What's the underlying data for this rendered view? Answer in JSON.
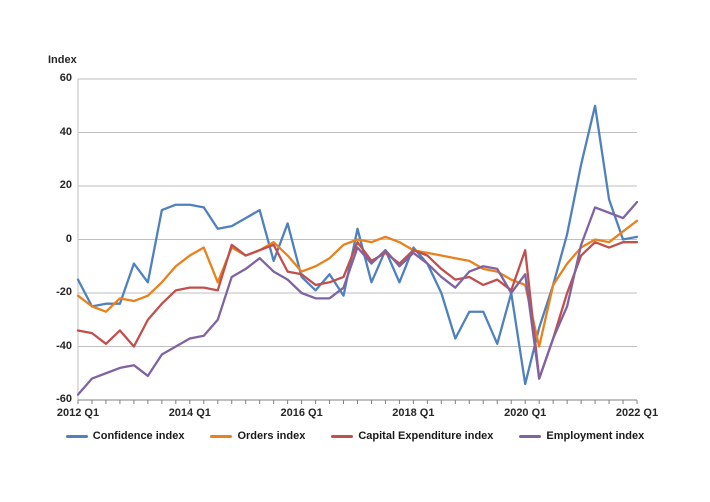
{
  "y_axis": {
    "title": "Index",
    "ticks": [
      "60",
      "40",
      "20",
      "0",
      "-20",
      "-40",
      "-60"
    ]
  },
  "x_axis": {
    "ticks": [
      "2012 Q1",
      "2014 Q1",
      "2016 Q1",
      "2018 Q1",
      "2020 Q1",
      "2022 Q1"
    ]
  },
  "colors": {
    "grid": "#BFBFBF",
    "axis": "#808080",
    "background": "#FFFFFF"
  },
  "chart_data": {
    "type": "line",
    "title": "",
    "ylabel": "Index",
    "xlabel": "",
    "ylim": [
      -60,
      60
    ],
    "grid": true,
    "legend_position": "bottom",
    "frequency": "quarterly",
    "categories": [
      "2012 Q1",
      "2012 Q2",
      "2012 Q3",
      "2012 Q4",
      "2013 Q1",
      "2013 Q2",
      "2013 Q3",
      "2013 Q4",
      "2014 Q1",
      "2014 Q2",
      "2014 Q3",
      "2014 Q4",
      "2015 Q1",
      "2015 Q2",
      "2015 Q3",
      "2015 Q4",
      "2016 Q1",
      "2016 Q2",
      "2016 Q3",
      "2016 Q4",
      "2017 Q1",
      "2017 Q2",
      "2017 Q3",
      "2017 Q4",
      "2018 Q1",
      "2018 Q2",
      "2018 Q3",
      "2018 Q4",
      "2019 Q1",
      "2019 Q2",
      "2019 Q3",
      "2019 Q4",
      "2020 Q1",
      "2020 Q2",
      "2020 Q3",
      "2020 Q4",
      "2021 Q1",
      "2021 Q2",
      "2021 Q3",
      "2021 Q4",
      "2022 Q1"
    ],
    "series": [
      {
        "name": "Confidence index",
        "color": "#4F81BD",
        "values": [
          -15,
          -25,
          -24,
          -24,
          -9,
          -16,
          11,
          13,
          13,
          12,
          4,
          5,
          8,
          11,
          -8,
          6,
          -14,
          -19,
          -13,
          -21,
          4,
          -16,
          -4,
          -16,
          -3,
          -9,
          -20,
          -37,
          -27,
          -27,
          -39,
          -20,
          -54,
          -33,
          -17,
          2,
          28,
          50,
          15,
          0,
          1
        ]
      },
      {
        "name": "Orders index",
        "color": "#E8821E",
        "values": [
          -21,
          -25,
          -27,
          -22,
          -23,
          -21,
          -16,
          -10,
          -6,
          -3,
          -16,
          -3,
          -6,
          -4,
          -1,
          -6,
          -12,
          -10,
          -7,
          -2,
          0,
          -1,
          1,
          -1,
          -4,
          -5,
          -6,
          -7,
          -8,
          -11,
          -12,
          -15,
          -17,
          -40,
          -17,
          -9,
          -3,
          0,
          -1,
          3,
          7
        ]
      },
      {
        "name": "Capital Expenditure index",
        "color": "#C0504D",
        "values": [
          -34,
          -35,
          -39,
          -34,
          -40,
          -30,
          -24,
          -19,
          -18,
          -18,
          -19,
          -2,
          -6,
          -4,
          -2,
          -12,
          -13,
          -17,
          -16,
          -14,
          -1,
          -8,
          -5,
          -9,
          -4,
          -6,
          -11,
          -15,
          -14,
          -17,
          -15,
          -19,
          -4,
          -52,
          -37,
          -20,
          -6,
          -1,
          -3,
          -1,
          -1
        ]
      },
      {
        "name": "Employment index",
        "color": "#8064A2",
        "values": [
          -58,
          -52,
          -50,
          -48,
          -47,
          -51,
          -43,
          -40,
          -37,
          -36,
          -30,
          -14,
          -11,
          -7,
          -12,
          -15,
          -20,
          -22,
          -22,
          -18,
          -3,
          -9,
          -4,
          -10,
          -5,
          -9,
          -14,
          -18,
          -12,
          -10,
          -11,
          -20,
          -13,
          -52,
          -37,
          -25,
          -2,
          12,
          10,
          8,
          14
        ]
      }
    ]
  }
}
